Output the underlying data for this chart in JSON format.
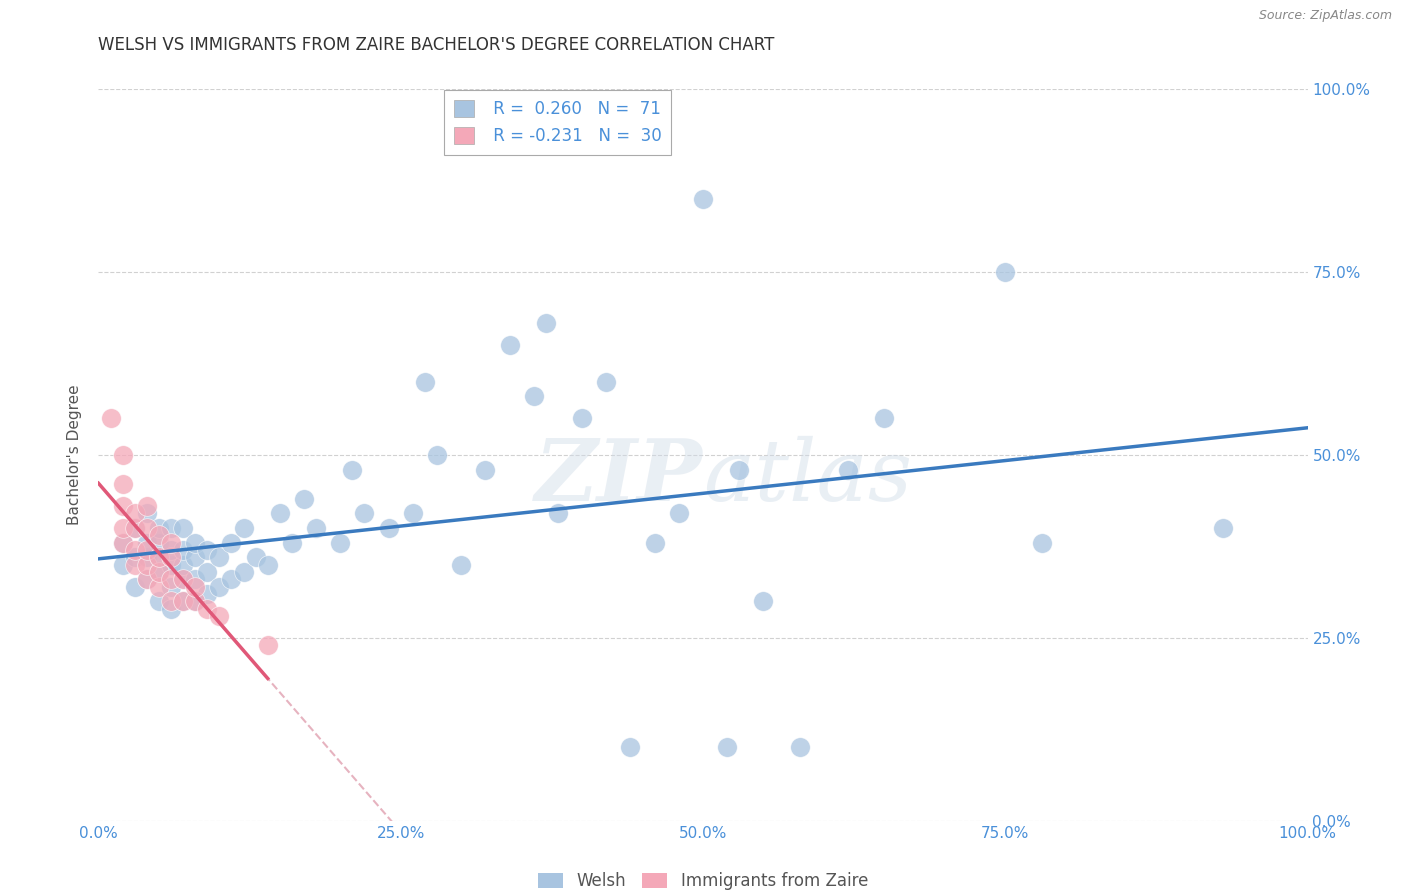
{
  "title": "WELSH VS IMMIGRANTS FROM ZAIRE BACHELOR'S DEGREE CORRELATION CHART",
  "source": "Source: ZipAtlas.com",
  "ylabel": "Bachelor's Degree",
  "xlim": [
    0.0,
    1.0
  ],
  "ylim": [
    0.0,
    1.0
  ],
  "xticks": [
    0.0,
    0.25,
    0.5,
    0.75,
    1.0
  ],
  "yticks": [
    0.0,
    0.25,
    0.5,
    0.75,
    1.0
  ],
  "xtick_labels": [
    "0.0%",
    "25.0%",
    "50.0%",
    "75.0%",
    "100.0%"
  ],
  "ytick_labels_left": [
    "",
    "",
    "",
    "",
    ""
  ],
  "ytick_labels_right": [
    "0.0%",
    "25.0%",
    "50.0%",
    "75.0%",
    "100.0%"
  ],
  "welsh_color": "#a8c4e0",
  "zaire_color": "#f4a8b8",
  "welsh_line_color": "#3a7abf",
  "zaire_line_color": "#e05878",
  "zaire_dashed_color": "#e0a0b0",
  "watermark": "ZIPAtlas",
  "welsh_R": 0.26,
  "welsh_N": 71,
  "zaire_R": -0.231,
  "zaire_N": 30,
  "welsh_scatter_x": [
    0.02,
    0.02,
    0.03,
    0.03,
    0.03,
    0.04,
    0.04,
    0.04,
    0.04,
    0.05,
    0.05,
    0.05,
    0.05,
    0.05,
    0.06,
    0.06,
    0.06,
    0.06,
    0.06,
    0.07,
    0.07,
    0.07,
    0.07,
    0.07,
    0.08,
    0.08,
    0.08,
    0.08,
    0.09,
    0.09,
    0.09,
    0.1,
    0.1,
    0.11,
    0.11,
    0.12,
    0.12,
    0.13,
    0.14,
    0.15,
    0.16,
    0.17,
    0.18,
    0.2,
    0.21,
    0.22,
    0.24,
    0.26,
    0.27,
    0.28,
    0.3,
    0.32,
    0.34,
    0.36,
    0.37,
    0.38,
    0.4,
    0.42,
    0.44,
    0.46,
    0.48,
    0.5,
    0.52,
    0.53,
    0.55,
    0.58,
    0.62,
    0.65,
    0.75,
    0.78,
    0.93
  ],
  "welsh_scatter_y": [
    0.35,
    0.38,
    0.32,
    0.36,
    0.4,
    0.33,
    0.36,
    0.38,
    0.42,
    0.3,
    0.34,
    0.36,
    0.38,
    0.4,
    0.29,
    0.32,
    0.35,
    0.37,
    0.4,
    0.3,
    0.33,
    0.35,
    0.37,
    0.4,
    0.3,
    0.33,
    0.36,
    0.38,
    0.31,
    0.34,
    0.37,
    0.32,
    0.36,
    0.33,
    0.38,
    0.34,
    0.4,
    0.36,
    0.35,
    0.42,
    0.38,
    0.44,
    0.4,
    0.38,
    0.48,
    0.42,
    0.4,
    0.42,
    0.6,
    0.5,
    0.35,
    0.48,
    0.65,
    0.58,
    0.68,
    0.42,
    0.55,
    0.6,
    0.1,
    0.38,
    0.42,
    0.85,
    0.1,
    0.48,
    0.3,
    0.1,
    0.48,
    0.55,
    0.75,
    0.38,
    0.4
  ],
  "zaire_scatter_x": [
    0.01,
    0.02,
    0.02,
    0.02,
    0.02,
    0.02,
    0.03,
    0.03,
    0.03,
    0.03,
    0.04,
    0.04,
    0.04,
    0.04,
    0.04,
    0.05,
    0.05,
    0.05,
    0.05,
    0.06,
    0.06,
    0.06,
    0.06,
    0.07,
    0.07,
    0.08,
    0.08,
    0.09,
    0.1,
    0.14
  ],
  "zaire_scatter_y": [
    0.55,
    0.38,
    0.4,
    0.43,
    0.46,
    0.5,
    0.35,
    0.37,
    0.4,
    0.42,
    0.33,
    0.35,
    0.37,
    0.4,
    0.43,
    0.32,
    0.34,
    0.36,
    0.39,
    0.3,
    0.33,
    0.36,
    0.38,
    0.3,
    0.33,
    0.3,
    0.32,
    0.29,
    0.28,
    0.24
  ],
  "background_color": "#ffffff",
  "grid_color": "#cccccc",
  "title_fontsize": 12,
  "axis_label_fontsize": 11,
  "tick_fontsize": 11,
  "legend_fontsize": 12
}
